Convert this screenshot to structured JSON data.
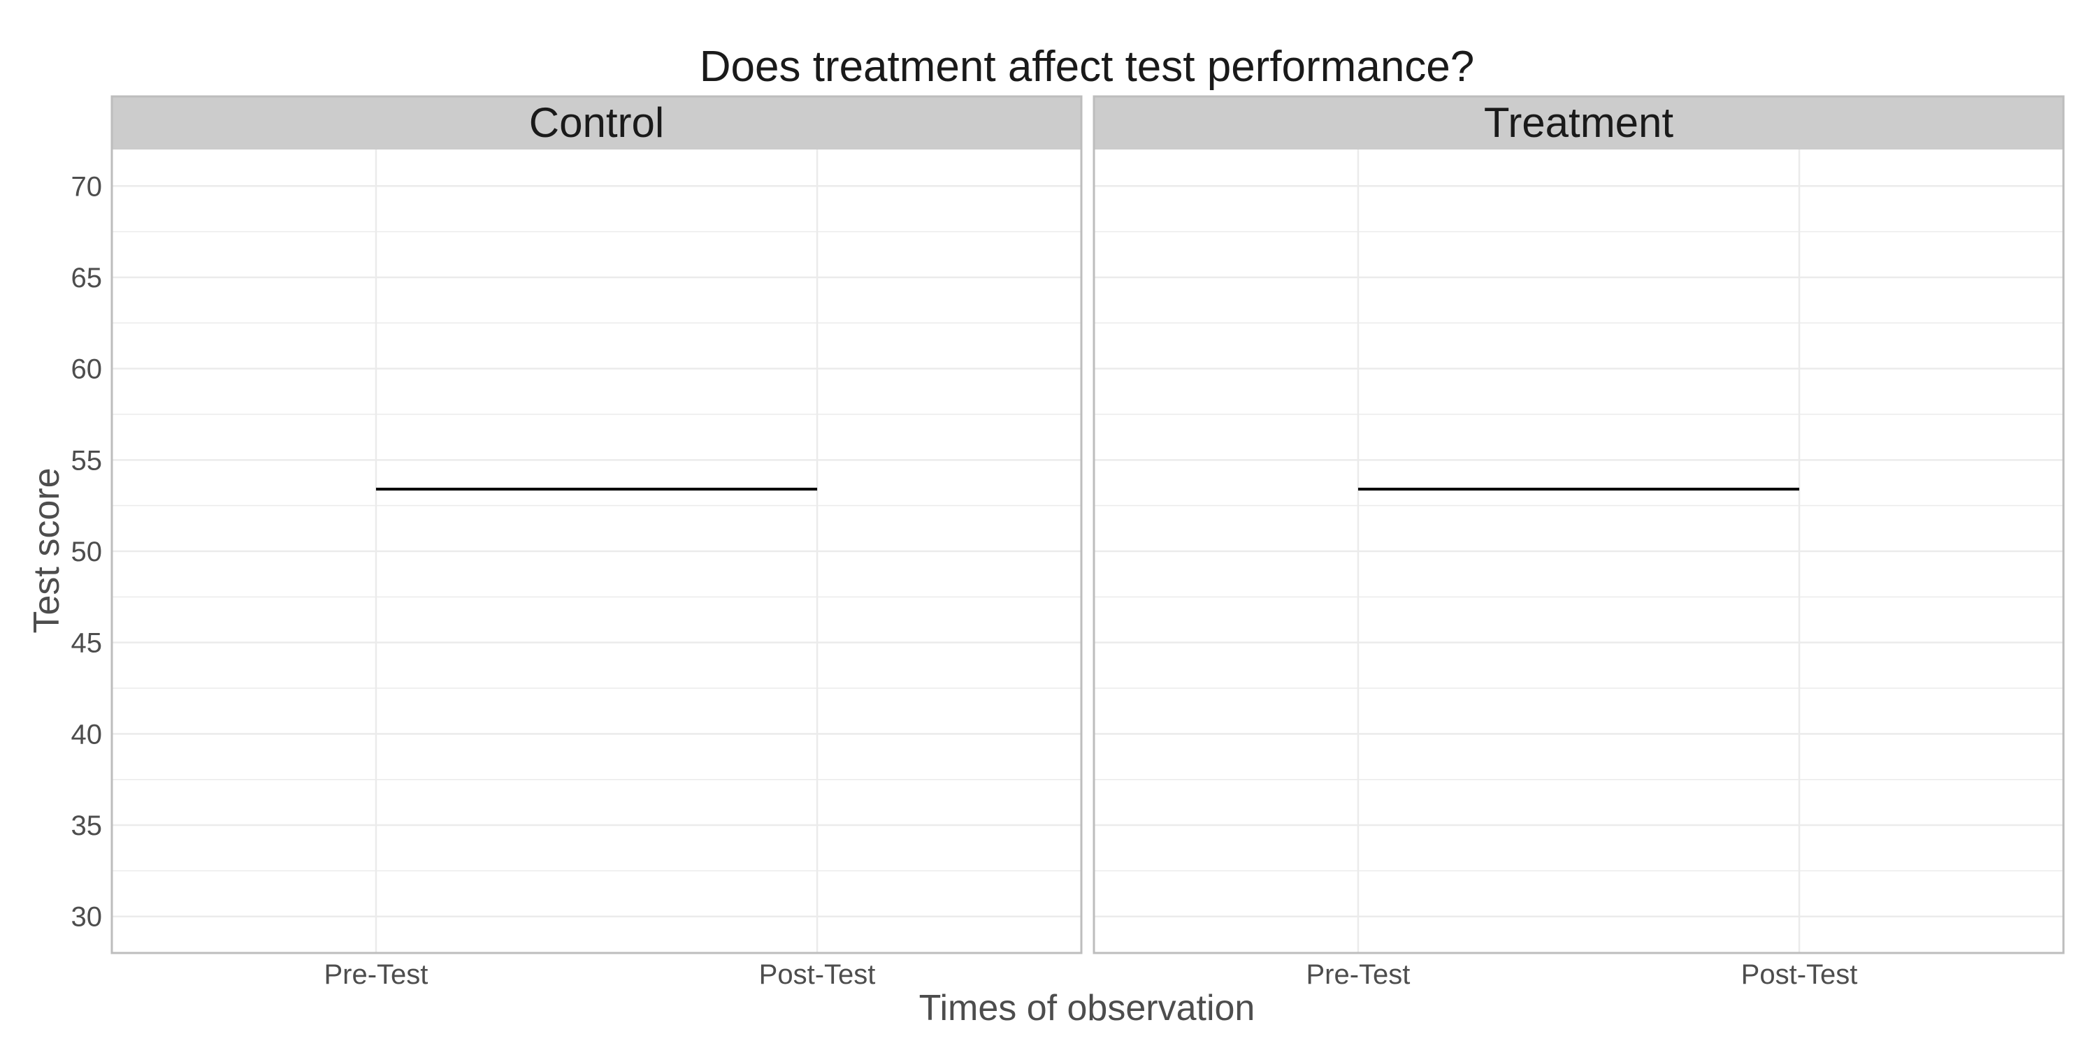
{
  "chart_data": {
    "type": "line",
    "title": "Does treatment affect test performance?",
    "xlabel": "Times of observation",
    "ylabel": "Test score",
    "categories": [
      "Pre-Test",
      "Post-Test"
    ],
    "ylim": [
      28,
      72
    ],
    "y_ticks": [
      30,
      35,
      40,
      45,
      50,
      55,
      60,
      65,
      70
    ],
    "y_tick_labels": [
      "30",
      "35",
      "40",
      "45",
      "50",
      "55",
      "60",
      "65",
      "70"
    ],
    "grid": true,
    "facets": [
      {
        "label": "Control",
        "series": [
          {
            "values": [
              53.4,
              53.4
            ]
          }
        ]
      },
      {
        "label": "Treatment",
        "series": [
          {
            "values": [
              53.4,
              53.4
            ]
          }
        ]
      }
    ],
    "colors": {
      "line": "#000000",
      "strip": "#cccccc",
      "panel_border": "#bdbdbd",
      "grid": "#ebebeb",
      "tick_text": "#4d4d4d",
      "axis_title": "#4d4d4d",
      "title": "#1a1a1a"
    }
  }
}
